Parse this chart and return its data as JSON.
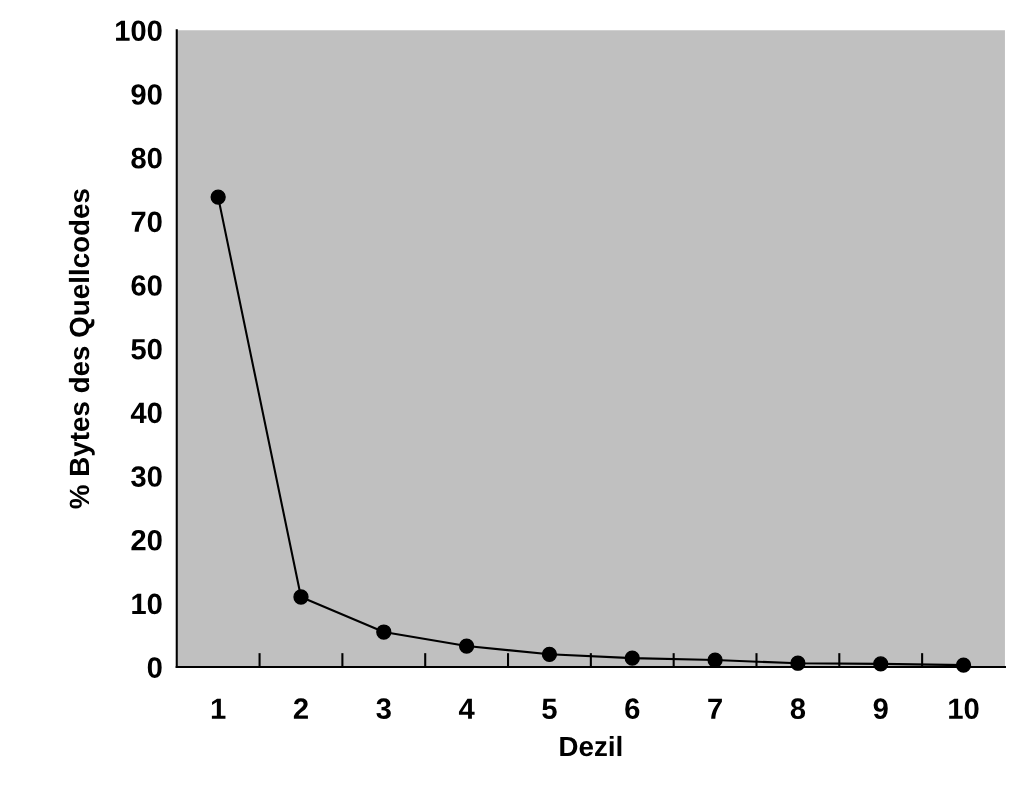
{
  "chart_data": {
    "type": "line",
    "xlabel": "Dezil",
    "ylabel": "% Bytes des Quellcodes",
    "categories": [
      "1",
      "2",
      "3",
      "4",
      "5",
      "6",
      "7",
      "8",
      "9",
      "10"
    ],
    "series": [
      {
        "color": "#000000",
        "values": [
          73.8,
          11.0,
          5.5,
          3.3,
          2.0,
          1.4,
          1.1,
          0.6,
          0.5,
          0.3
        ]
      }
    ],
    "ylim": [
      0,
      100
    ],
    "yticks": [
      0,
      10,
      20,
      30,
      40,
      50,
      60,
      70,
      80,
      90,
      100
    ],
    "marker": "circle",
    "line_style": "solid",
    "grid": false
  }
}
